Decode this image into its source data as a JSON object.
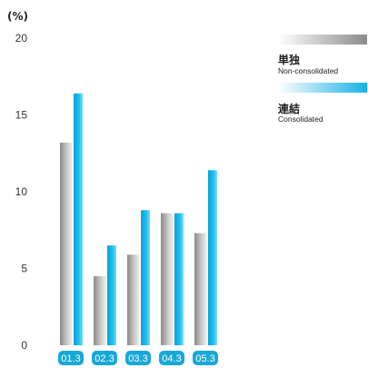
{
  "chart_data": {
    "type": "bar",
    "unit_label": "(%)",
    "categories": [
      "01.3",
      "02.3",
      "03.3",
      "04.3",
      "05.3"
    ],
    "series": [
      {
        "name": "単独",
        "subname": "Non-consolidated",
        "values": [
          13.2,
          4.5,
          5.9,
          8.6,
          7.3
        ]
      },
      {
        "name": "連結",
        "subname": "Consolidated",
        "values": [
          16.4,
          6.5,
          8.8,
          8.6,
          11.4
        ]
      }
    ],
    "yticks": [
      0,
      5,
      10,
      15,
      20
    ],
    "ylim": [
      0,
      20
    ],
    "colors": {
      "non_consolidated": "#9a9a9a",
      "consolidated": "#1cb6e8",
      "category_badge": "#18a8d8"
    }
  }
}
